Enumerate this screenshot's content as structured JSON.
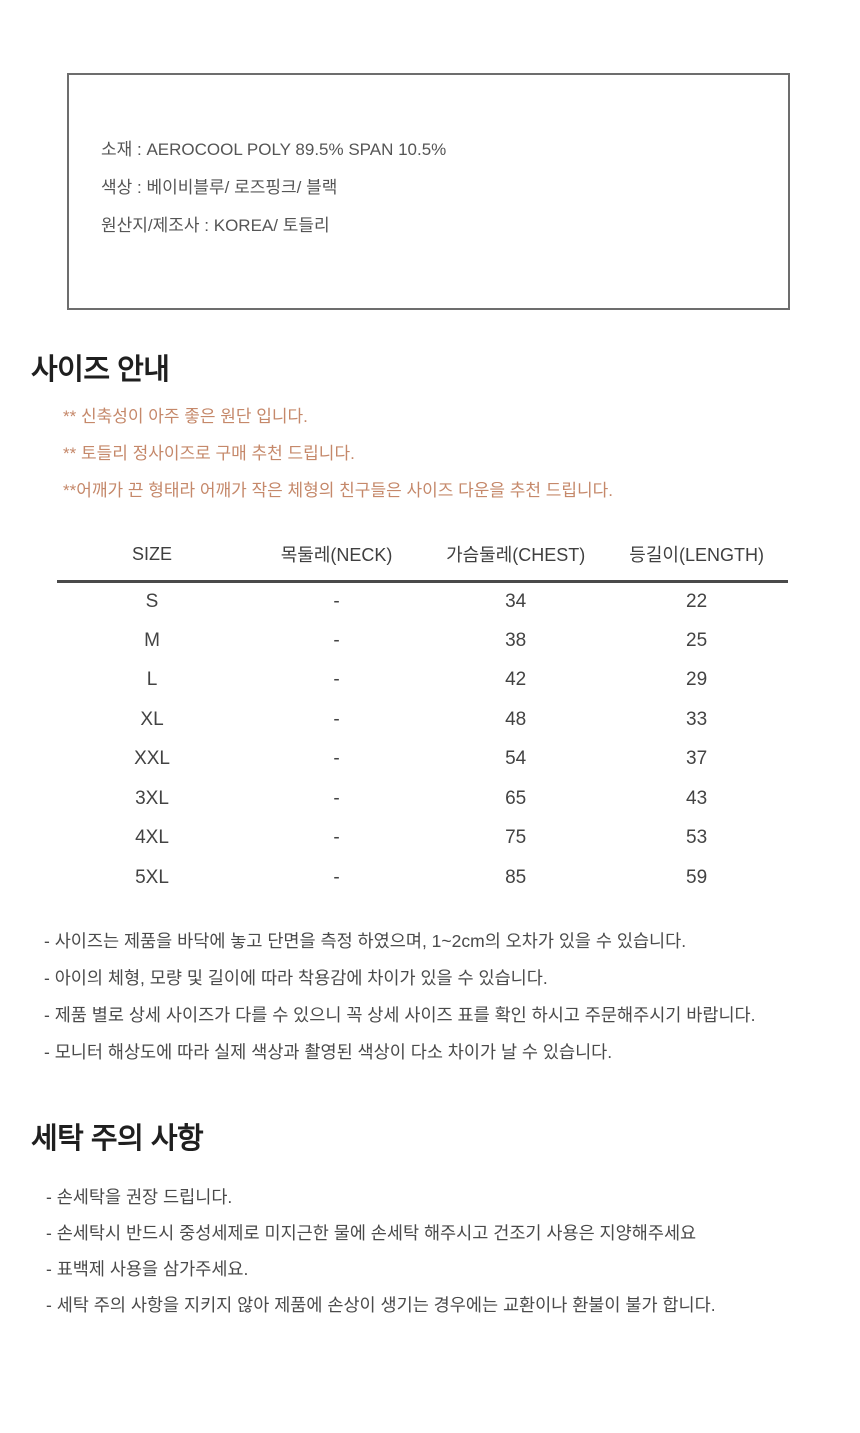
{
  "colors": {
    "accent_note": "#c5886a",
    "box_border": "#6d6d6d",
    "heading": "#1f1f1f",
    "body_text": "#4a4a4a"
  },
  "product_info": {
    "material": "소재 : AEROCOOL POLY 89.5% SPAN 10.5%",
    "color": "색상 : 베이비블루/ 로즈핑크/ 블랙",
    "origin": "원산지/제조사 : KOREA/ 토들리"
  },
  "size_section": {
    "title": "사이즈 안내",
    "highlights": [
      "** 신축성이 아주 좋은 원단 입니다.",
      "** 토들리 정사이즈로 구매 추천 드립니다.",
      "**어깨가 끈 형태라 어깨가 작은 체형의 친구들은 사이즈 다운을 추천 드립니다."
    ],
    "table": {
      "headers": [
        "SIZE",
        "목둘레(NECK)",
        "가슴둘레(CHEST)",
        "등길이(LENGTH)"
      ],
      "rows": [
        [
          "S",
          "-",
          "34",
          "22"
        ],
        [
          "M",
          "-",
          "38",
          "25"
        ],
        [
          "L",
          "-",
          "42",
          "29"
        ],
        [
          "XL",
          "-",
          "48",
          "33"
        ],
        [
          "XXL",
          "-",
          "54",
          "37"
        ],
        [
          "3XL",
          "-",
          "65",
          "43"
        ],
        [
          "4XL",
          "-",
          "75",
          "53"
        ],
        [
          "5XL",
          "-",
          "85",
          "59"
        ]
      ]
    },
    "disclaimers": [
      "- 사이즈는 제품을 바닥에 놓고 단면을 측정 하였으며, 1~2cm의 오차가 있을 수 있습니다.",
      "- 아이의 체형, 모량 및 길이에 따라 착용감에 차이가 있을 수 있습니다.",
      "- 제품 별로 상세 사이즈가 다를 수 있으니 꼭 상세 사이즈 표를 확인 하시고 주문해주시기 바랍니다.",
      "- 모니터 해상도에 따라 실제 색상과 촬영된 색상이 다소 차이가 날 수 있습니다."
    ]
  },
  "wash_section": {
    "title": "세탁 주의 사항",
    "notes": [
      "- 손세탁을 권장 드립니다.",
      "- 손세탁시 반드시 중성세제로 미지근한 물에 손세탁 해주시고 건조기 사용은  지양해주세요",
      "- 표백제 사용을 삼가주세요.",
      "- 세탁 주의 사항을 지키지 않아 제품에 손상이 생기는 경우에는 교환이나 환불이 불가 합니다."
    ]
  }
}
